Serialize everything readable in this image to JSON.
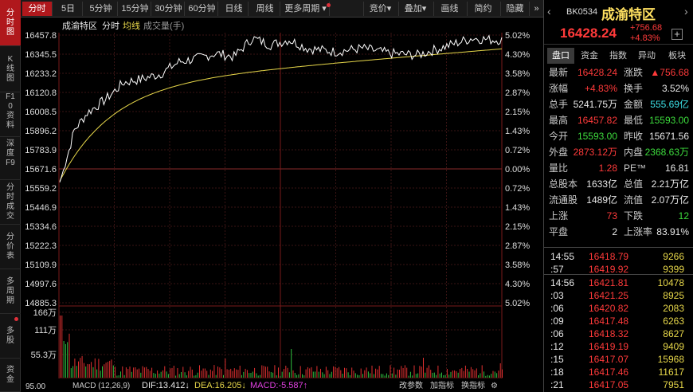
{
  "sidebar": {
    "items": [
      {
        "label": "分时图",
        "active": true
      },
      {
        "label": "K线图"
      },
      {
        "label": "F10资料"
      },
      {
        "label": "深度F9"
      },
      {
        "label": "分时成交"
      },
      {
        "label": "分价表"
      },
      {
        "label": "多周期"
      },
      {
        "label": "多股"
      },
      {
        "label": "资金"
      }
    ]
  },
  "toolbar": {
    "periods": [
      "分时",
      "5日",
      "5分钟",
      "15分钟",
      "30分钟",
      "60分钟",
      "日线",
      "周线",
      "更多周期"
    ],
    "right": [
      "竞价",
      "叠加",
      "画线",
      "简约",
      "隐藏"
    ],
    "expand": "»"
  },
  "chart": {
    "name": "成渝特区",
    "legend_fenshi": "分时",
    "legend_avg": "均线",
    "legend_vol": "成交量(手)",
    "price_ticks": [
      "16457.8",
      "16345.5",
      "16233.2",
      "16120.8",
      "16008.5",
      "15896.2",
      "15783.9",
      "15671.6",
      "15559.2",
      "15446.9",
      "15334.6",
      "15222.3",
      "15109.9",
      "14997.6",
      "14885.3"
    ],
    "pct_ticks": [
      "5.02%",
      "4.30%",
      "3.58%",
      "2.87%",
      "2.15%",
      "1.43%",
      "0.72%",
      "0.00%",
      "0.72%",
      "1.43%",
      "2.15%",
      "2.87%",
      "3.58%",
      "4.30%",
      "5.02%"
    ],
    "vol_ticks": [
      "166万",
      "111万",
      "55.3万"
    ],
    "macd_title": "MACD (12,26,9)",
    "macd_axis": "95.00",
    "dif": "DIF:13.412↓",
    "dea": "DEA:16.205↓",
    "macd": "MACD:-5.587↑",
    "bottom_links": [
      "改参数",
      "加指标",
      "换指标"
    ]
  },
  "colors": {
    "up": "#ff3a3a",
    "down": "#3ddc3d",
    "avg": "#e8d84a",
    "price": "#ffffff",
    "accent": "#b0181c"
  },
  "quote": {
    "code": "BK0534",
    "name": "成渝特区",
    "price": "16428.24",
    "change": "+756.68",
    "change_pct": "+4.83%"
  },
  "tabs": [
    "盘口",
    "资金",
    "指数",
    "异动",
    "板块"
  ],
  "stats": [
    [
      {
        "k": "最新",
        "v": "16428.24",
        "c": "up"
      },
      {
        "k": "涨跌",
        "v": "▲756.68",
        "c": "up"
      }
    ],
    [
      {
        "k": "涨幅",
        "v": "+4.83%",
        "c": "up"
      },
      {
        "k": "换手",
        "v": "3.52%",
        "c": "wh"
      }
    ],
    [
      {
        "k": "总手",
        "v": "5241.75万",
        "c": "wh"
      },
      {
        "k": "金额",
        "v": "555.69亿",
        "c": "cy"
      }
    ],
    [
      {
        "k": "最高",
        "v": "16457.82",
        "c": "up"
      },
      {
        "k": "最低",
        "v": "15593.00",
        "c": "dn"
      }
    ],
    [
      {
        "k": "今开",
        "v": "15593.00",
        "c": "dn"
      },
      {
        "k": "昨收",
        "v": "15671.56",
        "c": "wh"
      }
    ],
    [
      {
        "k": "外盘",
        "v": "2873.12万",
        "c": "up"
      },
      {
        "k": "内盘",
        "v": "2368.63万",
        "c": "dn"
      }
    ],
    [
      {
        "k": "量比",
        "v": "1.28",
        "c": "up"
      },
      {
        "k": "PE™",
        "v": "16.81",
        "c": "wh"
      }
    ],
    [
      {
        "k": "总股本",
        "v": "1633亿",
        "c": "wh"
      },
      {
        "k": "总值",
        "v": "2.21万亿",
        "c": "wh"
      }
    ],
    [
      {
        "k": "流通股",
        "v": "1489亿",
        "c": "wh"
      },
      {
        "k": "流值",
        "v": "2.07万亿",
        "c": "wh"
      }
    ],
    [
      {
        "k": "上涨",
        "v": "73",
        "c": "up"
      },
      {
        "k": "下跌",
        "v": "12",
        "c": "dn"
      }
    ],
    [
      {
        "k": "平盘",
        "v": "2",
        "c": "wh"
      },
      {
        "k": "上涨率",
        "v": "83.91%",
        "c": "wh"
      }
    ]
  ],
  "ticks_a": [
    {
      "t": "14:55",
      "p": "16418.79",
      "v": "9266"
    },
    {
      "t": ":57",
      "p": "16419.92",
      "v": "9399"
    }
  ],
  "ticks_b": [
    {
      "t": "14:56",
      "p": "16421.81",
      "v": "10478"
    },
    {
      "t": ":03",
      "p": "16421.25",
      "v": "8925"
    },
    {
      "t": ":06",
      "p": "16420.82",
      "v": "2083"
    },
    {
      "t": ":09",
      "p": "16417.48",
      "v": "6263"
    },
    {
      "t": ":06",
      "p": "16418.32",
      "v": "8627"
    },
    {
      "t": ":12",
      "p": "16419.19",
      "v": "9409"
    },
    {
      "t": ":15",
      "p": "16417.07",
      "v": "15968"
    },
    {
      "t": ":18",
      "p": "16417.46",
      "v": "11617"
    },
    {
      "t": ":21",
      "p": "16417.05",
      "v": "7951"
    }
  ]
}
